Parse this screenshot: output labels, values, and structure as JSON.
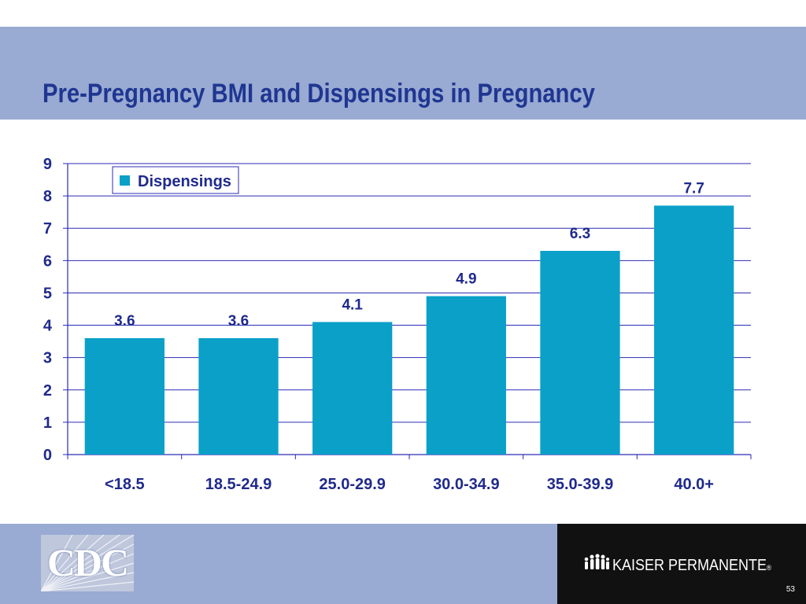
{
  "slide": {
    "title": "Pre-Pregnancy BMI and Dispensings in Pregnancy",
    "page_number": "53"
  },
  "logos": {
    "left": {
      "name": "CDC",
      "text": "CDC"
    },
    "right": {
      "name": "Kaiser Permanente",
      "text": "KAISER PERMANENTE",
      "mark": "®"
    }
  },
  "colors": {
    "header_band": "#99aad3",
    "title": "#1f3691",
    "bar": "#0aa0c8",
    "axis_text": "#1f2a8c",
    "gridline": "#2b2bb5",
    "footer_right": "#111111"
  },
  "chart_data": {
    "type": "bar",
    "categories": [
      "<18.5",
      "18.5-24.9",
      "25.0-29.9",
      "30.0-34.9",
      "35.0-39.9",
      "40.0+"
    ],
    "series": [
      {
        "name": "Dispensings",
        "values": [
          3.6,
          3.6,
          4.1,
          4.9,
          6.3,
          7.7
        ]
      }
    ],
    "data_labels": [
      "3.6",
      "3.6",
      "4.1",
      "4.9",
      "6.3",
      "7.7"
    ],
    "y_ticks": [
      "0",
      "1",
      "2",
      "3",
      "4",
      "5",
      "6",
      "7",
      "8",
      "9"
    ],
    "ylim": [
      0,
      9
    ],
    "grid": true,
    "legend": "top-left"
  }
}
